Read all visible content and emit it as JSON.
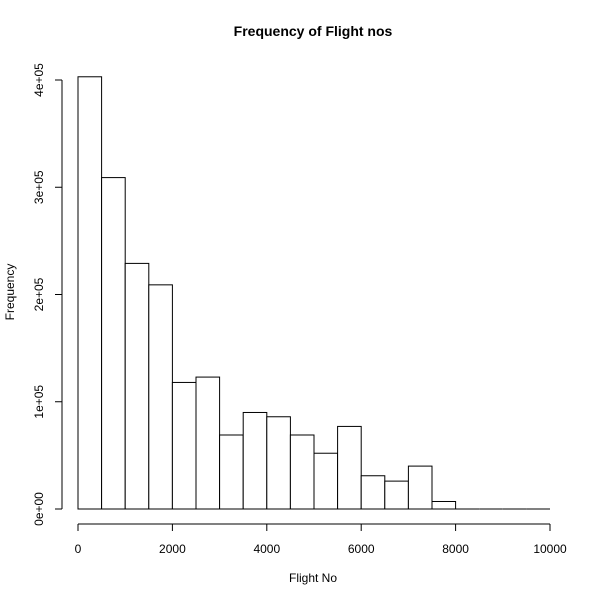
{
  "chart_data": {
    "type": "bar",
    "title": "Frequency of Flight nos",
    "xlabel": "Flight No",
    "ylabel": "Frequency",
    "bin_width": 500,
    "bins": [
      {
        "start": 0,
        "end": 500,
        "value": 403000
      },
      {
        "start": 500,
        "end": 1000,
        "value": 309000
      },
      {
        "start": 1000,
        "end": 1500,
        "value": 229000
      },
      {
        "start": 1500,
        "end": 2000,
        "value": 209000
      },
      {
        "start": 2000,
        "end": 2500,
        "value": 118000
      },
      {
        "start": 2500,
        "end": 3000,
        "value": 123000
      },
      {
        "start": 3000,
        "end": 3500,
        "value": 69000
      },
      {
        "start": 3500,
        "end": 4000,
        "value": 90000
      },
      {
        "start": 4000,
        "end": 4500,
        "value": 86000
      },
      {
        "start": 4500,
        "end": 5000,
        "value": 69000
      },
      {
        "start": 5000,
        "end": 5500,
        "value": 52000
      },
      {
        "start": 5500,
        "end": 6000,
        "value": 77000
      },
      {
        "start": 6000,
        "end": 6500,
        "value": 31000
      },
      {
        "start": 6500,
        "end": 7000,
        "value": 26000
      },
      {
        "start": 7000,
        "end": 7500,
        "value": 40000
      },
      {
        "start": 7500,
        "end": 8000,
        "value": 7000
      },
      {
        "start": 8000,
        "end": 8500,
        "value": 0
      },
      {
        "start": 8500,
        "end": 9000,
        "value": 0
      },
      {
        "start": 9000,
        "end": 9500,
        "value": 0
      },
      {
        "start": 9500,
        "end": 10000,
        "value": 0
      }
    ],
    "xlim": [
      0,
      10000
    ],
    "ylim": [
      0,
      403000
    ],
    "x_ticks": [
      0,
      2000,
      4000,
      6000,
      8000,
      10000
    ],
    "x_tick_labels": [
      "0",
      "2000",
      "4000",
      "6000",
      "8000",
      "10000"
    ],
    "y_ticks": [
      0,
      100000,
      200000,
      300000,
      400000
    ],
    "y_tick_labels": [
      "0e+00",
      "1e+05",
      "2e+05",
      "3e+05",
      "4e+05"
    ],
    "grid": false,
    "legend": "none"
  }
}
